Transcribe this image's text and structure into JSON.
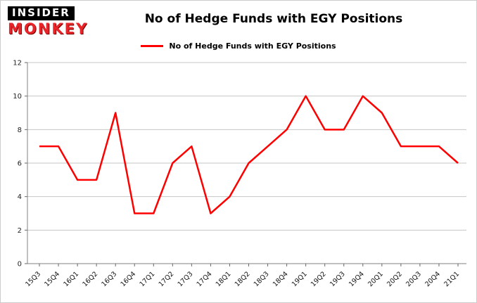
{
  "branding": {
    "line1": "INSIDER",
    "line2": "MONKEY"
  },
  "header": {
    "title": "No of Hedge Funds with EGY Positions"
  },
  "legend": {
    "label": "No of Hedge Funds with EGY Positions",
    "color": "#ff0000"
  },
  "chart_data": {
    "type": "line",
    "title": "No of Hedge Funds with EGY Positions",
    "categories": [
      "15Q3",
      "15Q4",
      "16Q1",
      "16Q2",
      "16Q3",
      "16Q4",
      "17Q1",
      "17Q2",
      "17Q3",
      "17Q4",
      "18Q1",
      "18Q2",
      "18Q3",
      "18Q4",
      "19Q1",
      "19Q2",
      "19Q3",
      "19Q4",
      "20Q1",
      "20Q2",
      "20Q3",
      "20Q4",
      "21Q1"
    ],
    "values": [
      7,
      7,
      5,
      5,
      9,
      3,
      3,
      6,
      7,
      3,
      4,
      6,
      7,
      8,
      10,
      8,
      8,
      10,
      9,
      7,
      7,
      7,
      6
    ],
    "xlabel": "",
    "ylabel": "",
    "ylim": [
      0,
      12
    ],
    "yticks": [
      0,
      2,
      4,
      6,
      8,
      10,
      12
    ],
    "line_color": "#ff0000",
    "grid": true,
    "legend_position": "top"
  }
}
